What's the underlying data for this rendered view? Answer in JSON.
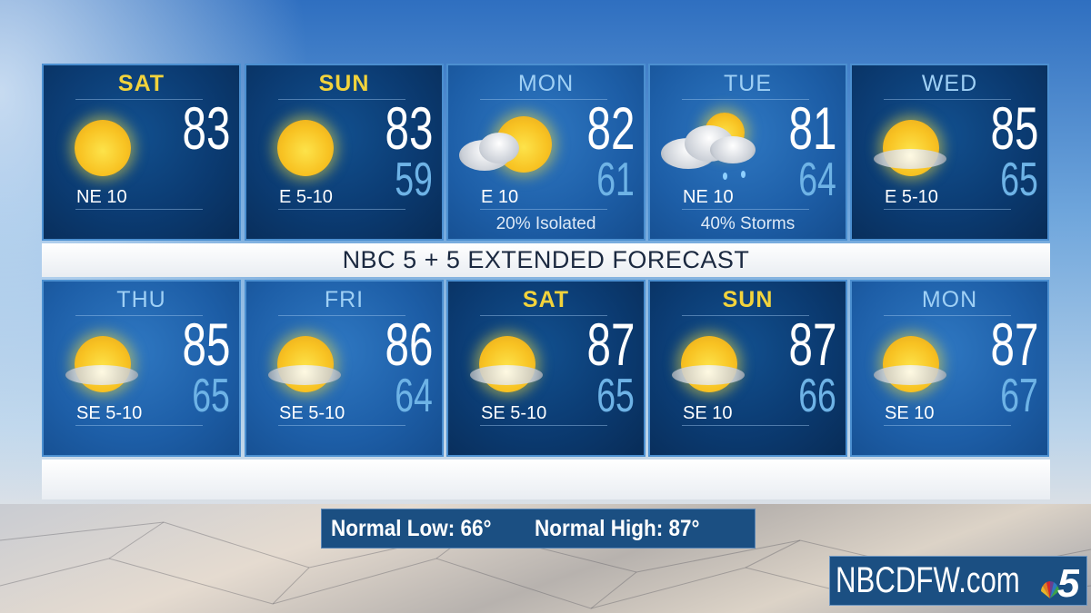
{
  "title": "NBC 5 + 5 EXTENDED FORECAST",
  "row1": [
    {
      "day": "SAT",
      "weekend": true,
      "style": "dark",
      "icon": "sunny-icon",
      "high": "83",
      "low": "",
      "wind": "NE 10",
      "precip": ""
    },
    {
      "day": "SUN",
      "weekend": true,
      "style": "dark",
      "icon": "sunny-icon",
      "high": "83",
      "low": "59",
      "wind": "E 5-10",
      "precip": ""
    },
    {
      "day": "MON",
      "weekend": false,
      "style": "light",
      "icon": "partly-cloudy-rain-icon",
      "high": "82",
      "low": "61",
      "wind": "E 10",
      "precip": "20% Isolated"
    },
    {
      "day": "TUE",
      "weekend": false,
      "style": "light",
      "icon": "storm-cloud-icon",
      "high": "81",
      "low": "64",
      "wind": "NE 10",
      "precip": "40% Storms"
    },
    {
      "day": "WED",
      "weekend": false,
      "style": "dark",
      "icon": "mostly-sunny-icon",
      "high": "85",
      "low": "65",
      "wind": "E 5-10",
      "precip": ""
    }
  ],
  "row2": [
    {
      "day": "THU",
      "weekend": false,
      "style": "light",
      "icon": "mostly-sunny-icon",
      "high": "85",
      "low": "65",
      "wind": "SE 5-10"
    },
    {
      "day": "FRI",
      "weekend": false,
      "style": "light",
      "icon": "mostly-sunny-icon",
      "high": "86",
      "low": "64",
      "wind": "SE 5-10"
    },
    {
      "day": "SAT",
      "weekend": true,
      "style": "dark",
      "icon": "mostly-sunny-icon",
      "high": "87",
      "low": "65",
      "wind": "SE 5-10"
    },
    {
      "day": "SUN",
      "weekend": true,
      "style": "dark",
      "icon": "mostly-sunny-icon",
      "high": "87",
      "low": "66",
      "wind": "SE 10"
    },
    {
      "day": "MON",
      "weekend": false,
      "style": "light",
      "icon": "mostly-sunny-icon",
      "high": "87",
      "low": "67",
      "wind": "SE 10"
    }
  ],
  "normals": {
    "low_label": "Normal Low: 66°",
    "high_label": "Normal High: 87°"
  },
  "brand": {
    "text": "NBCDFW.com",
    "logo": "nbc5-peacock-logo"
  },
  "colors": {
    "weekend_day": "#f2d33c",
    "weekday_day": "#9fd0f5",
    "low_temp": "#6eb3e6",
    "panel_border": "#4b8fd0"
  }
}
